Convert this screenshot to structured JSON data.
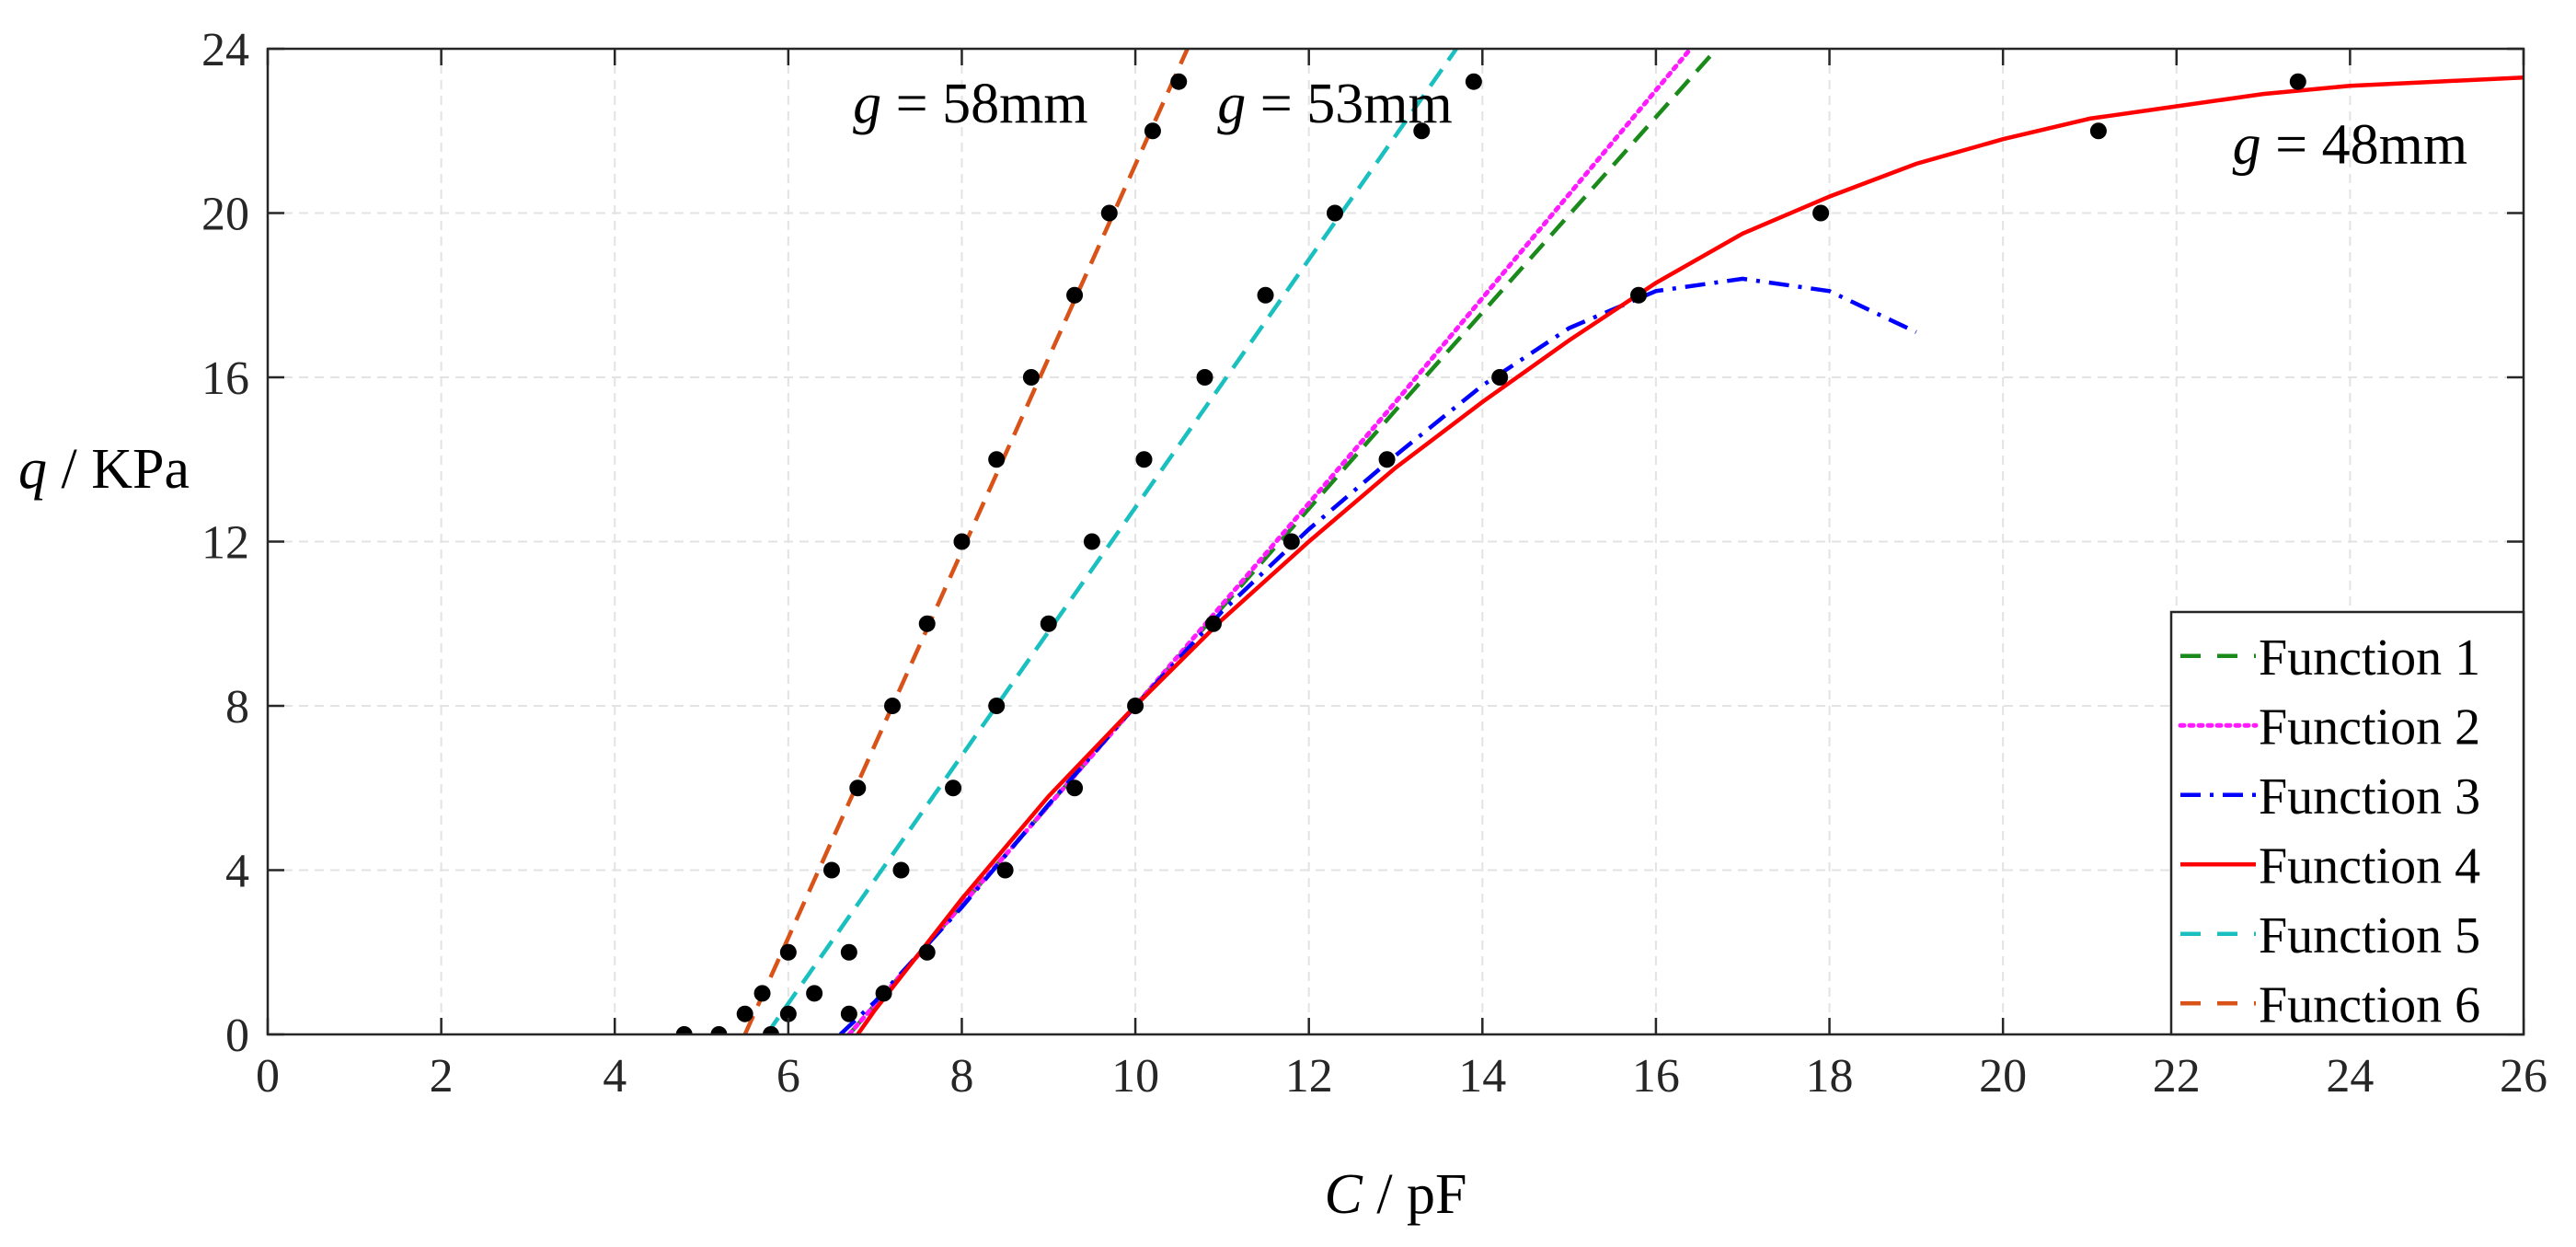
{
  "chart_data": {
    "type": "scatter",
    "title": "",
    "xlabel": {
      "var": "C",
      "unit": "pF"
    },
    "ylabel": {
      "var": "q",
      "unit": "KPa"
    },
    "xlim": [
      0,
      26
    ],
    "ylim": [
      0,
      24
    ],
    "xticks": [
      0,
      2,
      4,
      6,
      8,
      10,
      12,
      14,
      16,
      18,
      20,
      22,
      24,
      26
    ],
    "yticks": [
      0,
      4,
      8,
      12,
      16,
      20,
      24
    ],
    "grid": true,
    "legend_position": "bottom-right",
    "annotations": [
      {
        "var": "g",
        "op": "=",
        "value": "58mm",
        "x": 8.1,
        "y": 22.7
      },
      {
        "var": "g",
        "op": "=",
        "value": "53mm",
        "x": 12.3,
        "y": 22.7
      },
      {
        "var": "g",
        "op": "=",
        "value": "48mm",
        "x": 24.0,
        "y": 21.7
      }
    ],
    "scatter_series": [
      {
        "name": "g = 58mm",
        "color": "#000000",
        "x": [
          4.8,
          5.2,
          5.5,
          5.7,
          6.0,
          6.5,
          6.8,
          7.2,
          7.6,
          8.0,
          8.4,
          8.8,
          9.3,
          9.7,
          10.2,
          10.5
        ],
        "y": [
          0,
          0,
          0.5,
          1,
          2,
          4,
          6,
          8,
          10,
          12,
          14,
          16,
          18,
          20,
          22,
          23.2
        ]
      },
      {
        "name": "g = 53mm",
        "color": "#000000",
        "x": [
          5.8,
          6.0,
          6.3,
          6.7,
          7.3,
          7.9,
          8.4,
          9.0,
          9.5,
          10.1,
          10.8,
          11.5,
          12.3,
          13.3,
          13.9
        ],
        "y": [
          0,
          0.5,
          1,
          2,
          4,
          6,
          8,
          10,
          12,
          14,
          16,
          18,
          20,
          22,
          23.2
        ]
      },
      {
        "name": "g = 48mm",
        "color": "#000000",
        "x": [
          6.7,
          7.1,
          7.6,
          8.5,
          9.3,
          10.0,
          10.9,
          11.8,
          12.9,
          14.2,
          15.8,
          17.9,
          21.1,
          23.4
        ],
        "y": [
          0.5,
          1,
          2,
          4,
          6,
          8,
          10,
          12,
          14,
          16,
          18,
          20,
          22,
          23.2
        ]
      }
    ],
    "line_series": [
      {
        "name": "Function 1",
        "color": "#1a8a1a",
        "style": "dashed",
        "x": [
          6.7,
          10.0,
          13.0,
          16.7
        ],
        "y": [
          0,
          8.0,
          15.2,
          24.0
        ]
      },
      {
        "name": "Function 2",
        "color": "#ff1aff",
        "style": "dotted",
        "x": [
          6.7,
          10.0,
          13.0,
          16.4
        ],
        "y": [
          0,
          8.0,
          15.4,
          24.0
        ]
      },
      {
        "name": "Function 3",
        "color": "#0000ff",
        "style": "dashdot",
        "x": [
          6.6,
          7.0,
          8.0,
          9.0,
          10.0,
          11.0,
          12.0,
          13.0,
          14.0,
          15.0,
          16.0,
          17.0,
          18.0,
          19.0
        ],
        "y": [
          0,
          0.8,
          3.1,
          5.6,
          8.0,
          10.3,
          12.3,
          14.1,
          15.8,
          17.2,
          18.1,
          18.4,
          18.1,
          17.1
        ]
      },
      {
        "name": "Function 4",
        "color": "#ff0000",
        "style": "solid",
        "x": [
          6.8,
          7.0,
          8.0,
          9.0,
          10.0,
          11.0,
          12.0,
          13.0,
          14.0,
          15.0,
          16.0,
          17.0,
          18.0,
          19.0,
          20.0,
          21.0,
          22.0,
          23.0,
          24.0,
          25.0,
          26.0
        ],
        "y": [
          0,
          0.6,
          3.3,
          5.8,
          8.0,
          10.1,
          12.0,
          13.8,
          15.4,
          16.9,
          18.3,
          19.5,
          20.4,
          21.2,
          21.8,
          22.3,
          22.6,
          22.9,
          23.1,
          23.2,
          23.3
        ]
      },
      {
        "name": "Function 5",
        "color": "#1ac0c0",
        "style": "dashed",
        "x": [
          5.75,
          13.7
        ],
        "y": [
          0,
          24.0
        ]
      },
      {
        "name": "Function 6",
        "color": "#d95319",
        "style": "dashed",
        "x": [
          5.5,
          10.6
        ],
        "y": [
          0,
          24.0
        ]
      }
    ]
  }
}
